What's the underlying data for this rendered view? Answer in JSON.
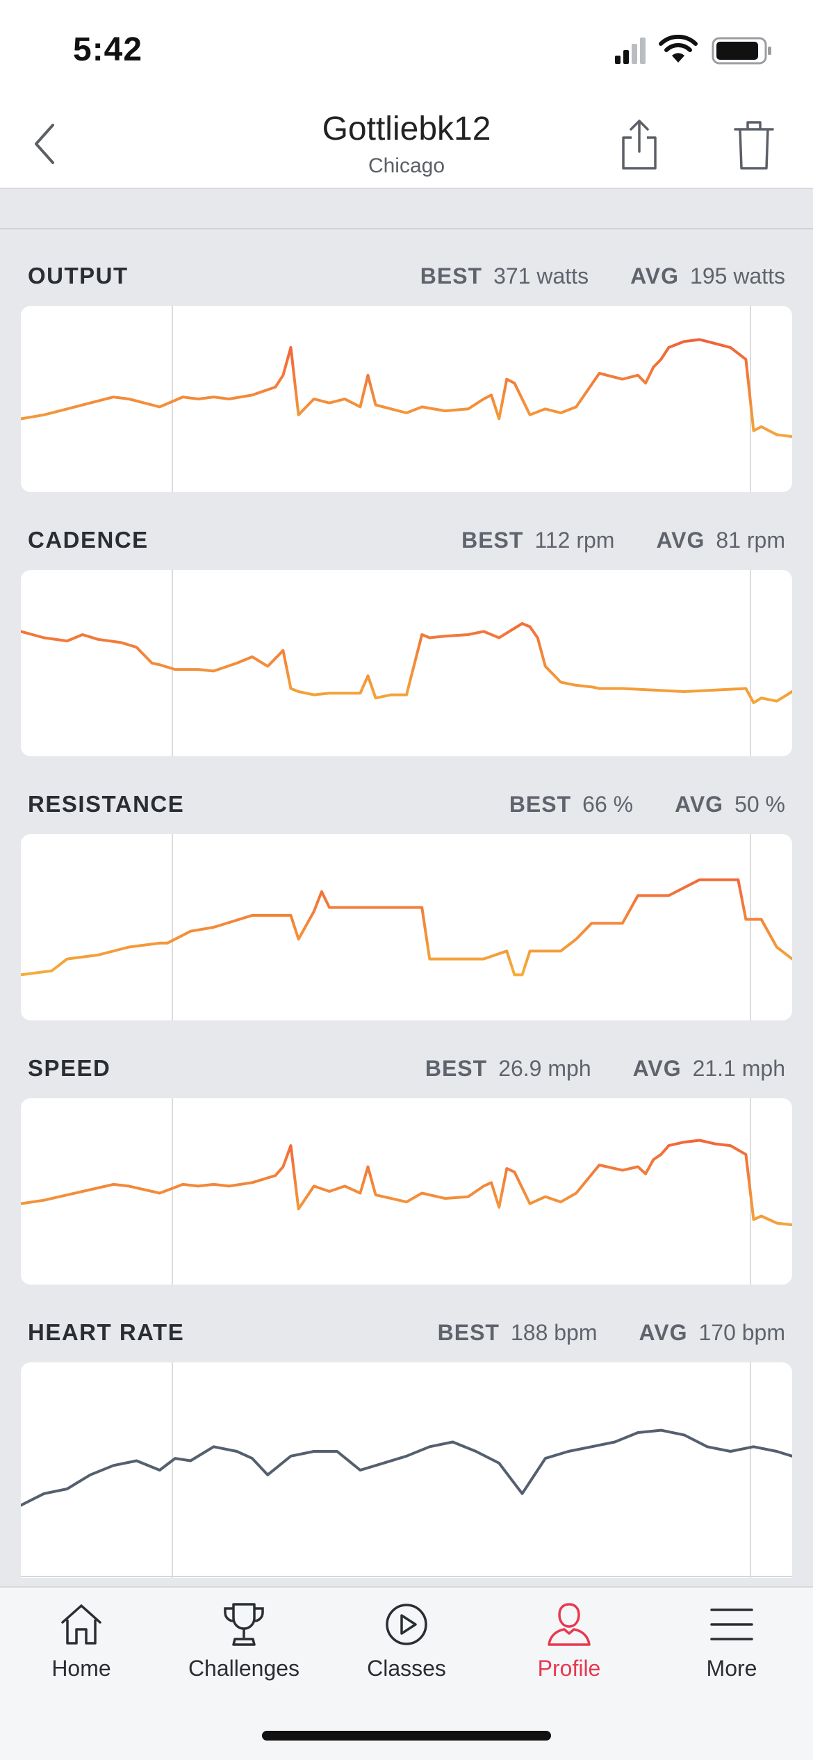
{
  "status_bar": {
    "time": "5:42",
    "icons": [
      "signal-icon",
      "wifi-icon",
      "battery-icon"
    ]
  },
  "header": {
    "title": "Gottliebk12",
    "subtitle": "Chicago",
    "icons": [
      "back-chevron-icon",
      "share-icon",
      "trash-icon"
    ]
  },
  "metrics": [
    {
      "label": "OUTPUT",
      "best_label": "BEST",
      "best_value": "371 watts",
      "avg_label": "AVG",
      "avg_value": "195 watts"
    },
    {
      "label": "CADENCE",
      "best_label": "BEST",
      "best_value": "112 rpm",
      "avg_label": "AVG",
      "avg_value": "81 rpm"
    },
    {
      "label": "RESISTANCE",
      "best_label": "BEST",
      "best_value": "66 %",
      "avg_label": "AVG",
      "avg_value": "50 %"
    },
    {
      "label": "SPEED",
      "best_label": "BEST",
      "best_value": "26.9 mph",
      "avg_label": "AVG",
      "avg_value": "21.1 mph"
    },
    {
      "label": "HEART RATE",
      "best_label": "BEST",
      "best_value": "188 bpm",
      "avg_label": "AVG",
      "avg_value": "170 bpm"
    }
  ],
  "colors": {
    "accent": "#e8384f",
    "line_high": "#f0533a",
    "line_low": "#f6c33a",
    "heart_line": "#55606e",
    "divider": "#dcdcdc"
  },
  "chart_data": [
    {
      "type": "line",
      "title": "OUTPUT",
      "x": [
        0,
        3,
        6,
        9,
        12,
        14,
        15,
        18,
        21,
        23,
        25,
        27,
        30,
        33,
        34,
        35,
        36,
        38,
        40,
        42,
        44,
        45,
        46,
        48,
        50,
        52,
        55,
        58,
        60,
        61,
        62,
        63,
        64,
        66,
        68,
        70,
        72,
        75,
        78,
        80,
        81,
        82,
        83,
        84,
        86,
        88,
        90,
        92,
        94,
        95,
        96,
        97,
        98,
        100
      ],
      "values": [
        150,
        160,
        175,
        190,
        205,
        200,
        195,
        180,
        205,
        200,
        205,
        200,
        210,
        230,
        260,
        330,
        160,
        200,
        190,
        200,
        180,
        260,
        185,
        175,
        165,
        180,
        170,
        175,
        200,
        210,
        150,
        250,
        240,
        160,
        175,
        165,
        180,
        265,
        250,
        260,
        240,
        280,
        300,
        330,
        345,
        350,
        340,
        330,
        300,
        120,
        130,
        120,
        110,
        105
      ],
      "ylim": [
        0,
        400
      ]
    },
    {
      "type": "line",
      "title": "CADENCE",
      "x": [
        0,
        3,
        6,
        8,
        10,
        13,
        15,
        17,
        18,
        20,
        23,
        25,
        28,
        30,
        32,
        34,
        35,
        36,
        38,
        40,
        44,
        45,
        46,
        48,
        50,
        52,
        53,
        55,
        58,
        60,
        62,
        65,
        66,
        67,
        68,
        70,
        72,
        74,
        75,
        78,
        82,
        86,
        90,
        94,
        95,
        96,
        98,
        100
      ],
      "values": [
        100,
        96,
        94,
        98,
        95,
        93,
        90,
        80,
        79,
        76,
        76,
        75,
        80,
        84,
        78,
        88,
        64,
        62,
        60,
        61,
        61,
        72,
        58,
        60,
        60,
        98,
        96,
        97,
        98,
        100,
        96,
        105,
        103,
        96,
        78,
        68,
        66,
        65,
        64,
        64,
        63,
        62,
        63,
        64,
        55,
        58,
        56,
        62
      ],
      "ylim": [
        30,
        130
      ]
    },
    {
      "type": "line",
      "title": "RESISTANCE",
      "x": [
        0,
        4,
        6,
        10,
        14,
        18,
        19,
        22,
        25,
        30,
        35,
        36,
        38,
        39,
        40,
        45,
        50,
        52,
        53,
        55,
        60,
        63,
        64,
        65,
        66,
        67,
        70,
        72,
        74,
        78,
        80,
        84,
        88,
        90,
        93,
        94,
        95,
        96,
        98,
        100
      ],
      "values": [
        38,
        39,
        42,
        43,
        45,
        46,
        46,
        49,
        50,
        53,
        53,
        47,
        54,
        59,
        55,
        55,
        55,
        55,
        42,
        42,
        42,
        44,
        38,
        38,
        44,
        44,
        44,
        47,
        51,
        51,
        58,
        58,
        62,
        62,
        62,
        52,
        52,
        52,
        45,
        42
      ],
      "ylim": [
        30,
        70
      ]
    },
    {
      "type": "line",
      "title": "SPEED",
      "x": [
        0,
        3,
        6,
        9,
        12,
        14,
        15,
        18,
        21,
        23,
        25,
        27,
        30,
        33,
        34,
        35,
        36,
        38,
        40,
        42,
        44,
        45,
        46,
        48,
        50,
        52,
        55,
        58,
        60,
        61,
        62,
        63,
        64,
        66,
        68,
        70,
        72,
        75,
        78,
        80,
        81,
        82,
        83,
        84,
        86,
        88,
        90,
        92,
        94,
        95,
        96,
        97,
        98,
        100
      ],
      "values": [
        19.6,
        20.0,
        20.6,
        21.2,
        21.8,
        21.6,
        21.4,
        20.8,
        21.8,
        21.6,
        21.8,
        21.6,
        22.0,
        22.8,
        23.8,
        26.2,
        19.0,
        21.6,
        21.0,
        21.6,
        20.8,
        23.8,
        20.6,
        20.2,
        19.8,
        20.8,
        20.2,
        20.4,
        21.6,
        22.0,
        19.2,
        23.6,
        23.2,
        19.6,
        20.4,
        19.8,
        20.8,
        24.0,
        23.4,
        23.8,
        23.0,
        24.6,
        25.2,
        26.2,
        26.6,
        26.8,
        26.4,
        26.2,
        25.2,
        17.8,
        18.2,
        17.8,
        17.4,
        17.2
      ],
      "ylim": [
        12,
        30
      ]
    },
    {
      "type": "line",
      "title": "HEART RATE",
      "x": [
        0,
        3,
        6,
        9,
        12,
        15,
        18,
        20,
        22,
        25,
        28,
        30,
        32,
        35,
        38,
        41,
        44,
        47,
        50,
        53,
        56,
        59,
        62,
        65,
        68,
        71,
        74,
        77,
        80,
        83,
        86,
        89,
        92,
        95,
        98,
        100
      ],
      "values": [
        145,
        150,
        152,
        158,
        162,
        164,
        160,
        165,
        164,
        170,
        168,
        165,
        158,
        166,
        168,
        168,
        160,
        163,
        166,
        170,
        172,
        168,
        163,
        150,
        165,
        168,
        170,
        172,
        176,
        177,
        175,
        170,
        168,
        170,
        168,
        166
      ],
      "ylim": [
        120,
        200
      ]
    }
  ],
  "tab_bar": {
    "items": [
      {
        "label": "Home",
        "icon": "home-icon"
      },
      {
        "label": "Challenges",
        "icon": "trophy-icon"
      },
      {
        "label": "Classes",
        "icon": "play-circle-icon"
      },
      {
        "label": "Profile",
        "icon": "person-icon"
      },
      {
        "label": "More",
        "icon": "menu-icon"
      }
    ],
    "active": "Profile"
  }
}
